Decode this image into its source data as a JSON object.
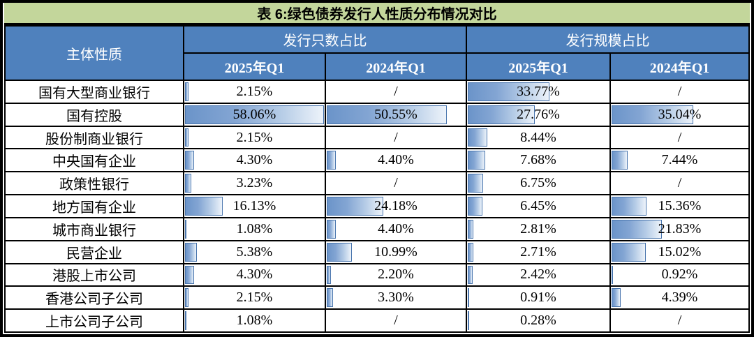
{
  "title": "表 6:绿色债券发行人性质分布情况对比",
  "table": {
    "corner_header": "主体性质",
    "groups": [
      {
        "label": "发行只数占比",
        "columns": [
          "2025年Q1",
          "2024年Q1"
        ]
      },
      {
        "label": "发行规模占比",
        "columns": [
          "2025年Q1",
          "2024年Q1"
        ]
      }
    ],
    "missing_marker": "/",
    "bar_scale_max": 58.06,
    "rows": [
      {
        "label": "国有大型商业银行",
        "cells": [
          {
            "text": "2.15%",
            "value": 2.15
          },
          {
            "text": "/",
            "value": null
          },
          {
            "text": "33.77%",
            "value": 33.77
          },
          {
            "text": "/",
            "value": null
          }
        ]
      },
      {
        "label": "国有控股",
        "cells": [
          {
            "text": "58.06%",
            "value": 58.06
          },
          {
            "text": "50.55%",
            "value": 50.55
          },
          {
            "text": "27.76%",
            "value": 27.76
          },
          {
            "text": "35.04%",
            "value": 35.04
          }
        ]
      },
      {
        "label": "股份制商业银行",
        "cells": [
          {
            "text": "2.15%",
            "value": 2.15
          },
          {
            "text": "/",
            "value": null
          },
          {
            "text": "8.44%",
            "value": 8.44
          },
          {
            "text": "/",
            "value": null
          }
        ]
      },
      {
        "label": "中央国有企业",
        "cells": [
          {
            "text": "4.30%",
            "value": 4.3
          },
          {
            "text": "4.40%",
            "value": 4.4
          },
          {
            "text": "7.68%",
            "value": 7.68
          },
          {
            "text": "7.44%",
            "value": 7.44
          }
        ]
      },
      {
        "label": "政策性银行",
        "cells": [
          {
            "text": "3.23%",
            "value": 3.23
          },
          {
            "text": "/",
            "value": null
          },
          {
            "text": "6.75%",
            "value": 6.75
          },
          {
            "text": "/",
            "value": null
          }
        ]
      },
      {
        "label": "地方国有企业",
        "cells": [
          {
            "text": "16.13%",
            "value": 16.13
          },
          {
            "text": "24.18%",
            "value": 24.18
          },
          {
            "text": "6.45%",
            "value": 6.45
          },
          {
            "text": "15.36%",
            "value": 15.36
          }
        ]
      },
      {
        "label": "城市商业银行",
        "cells": [
          {
            "text": "1.08%",
            "value": 1.08
          },
          {
            "text": "4.40%",
            "value": 4.4
          },
          {
            "text": "2.81%",
            "value": 2.81
          },
          {
            "text": "21.83%",
            "value": 21.83
          }
        ]
      },
      {
        "label": "民营企业",
        "cells": [
          {
            "text": "5.38%",
            "value": 5.38
          },
          {
            "text": "10.99%",
            "value": 10.99
          },
          {
            "text": "2.71%",
            "value": 2.71
          },
          {
            "text": "15.02%",
            "value": 15.02
          }
        ]
      },
      {
        "label": "港股上市公司",
        "cells": [
          {
            "text": "4.30%",
            "value": 4.3
          },
          {
            "text": "2.20%",
            "value": 2.2
          },
          {
            "text": "2.42%",
            "value": 2.42
          },
          {
            "text": "0.92%",
            "value": 0.92
          }
        ]
      },
      {
        "label": "香港公司子公司",
        "cells": [
          {
            "text": "2.15%",
            "value": 2.15
          },
          {
            "text": "3.30%",
            "value": 3.3
          },
          {
            "text": "0.91%",
            "value": 0.91
          },
          {
            "text": "4.39%",
            "value": 4.39
          }
        ]
      },
      {
        "label": "上市公司子公司",
        "cells": [
          {
            "text": "1.08%",
            "value": 1.08
          },
          {
            "text": "/",
            "value": null
          },
          {
            "text": "0.28%",
            "value": 0.28
          },
          {
            "text": "/",
            "value": null
          }
        ]
      }
    ]
  },
  "colors": {
    "title_bg": "#C3D69B",
    "header_bg": "#4F81BD",
    "header_text": "#FFFFFF",
    "body_text": "#000000",
    "grid_border": "#000000",
    "bar_fill_start": "#6B94C9",
    "bar_fill_end": "#EDF3FA",
    "bar_border": "#4A76AE"
  },
  "chart_data": {
    "type": "table",
    "title": "表 6:绿色债券发行人性质分布情况对比",
    "row_header": "主体性质",
    "column_groups": [
      "发行只数占比",
      "发行规模占比"
    ],
    "columns": [
      "发行只数占比 2025年Q1",
      "发行只数占比 2024年Q1",
      "发行规模占比 2025年Q1",
      "发行规模占比 2024年Q1"
    ],
    "categories": [
      "国有大型商业银行",
      "国有控股",
      "股份制商业银行",
      "中央国有企业",
      "政策性银行",
      "地方国有企业",
      "城市商业银行",
      "民营企业",
      "港股上市公司",
      "香港公司子公司",
      "上市公司子公司"
    ],
    "series": [
      {
        "name": "发行只数占比 2025年Q1",
        "values": [
          2.15,
          58.06,
          2.15,
          4.3,
          3.23,
          16.13,
          1.08,
          5.38,
          4.3,
          2.15,
          1.08
        ]
      },
      {
        "name": "发行只数占比 2024年Q1",
        "values": [
          null,
          50.55,
          null,
          4.4,
          null,
          24.18,
          4.4,
          10.99,
          2.2,
          3.3,
          null
        ]
      },
      {
        "name": "发行规模占比 2025年Q1",
        "values": [
          33.77,
          27.76,
          8.44,
          7.68,
          6.75,
          6.45,
          2.81,
          2.71,
          2.42,
          0.91,
          0.28
        ]
      },
      {
        "name": "发行规模占比 2024年Q1",
        "values": [
          null,
          35.04,
          null,
          7.44,
          null,
          15.36,
          21.83,
          15.02,
          0.92,
          4.39,
          null
        ]
      }
    ],
    "missing_marker": "/",
    "databar": {
      "min": 0,
      "max": 58.06,
      "unit": "%"
    }
  }
}
